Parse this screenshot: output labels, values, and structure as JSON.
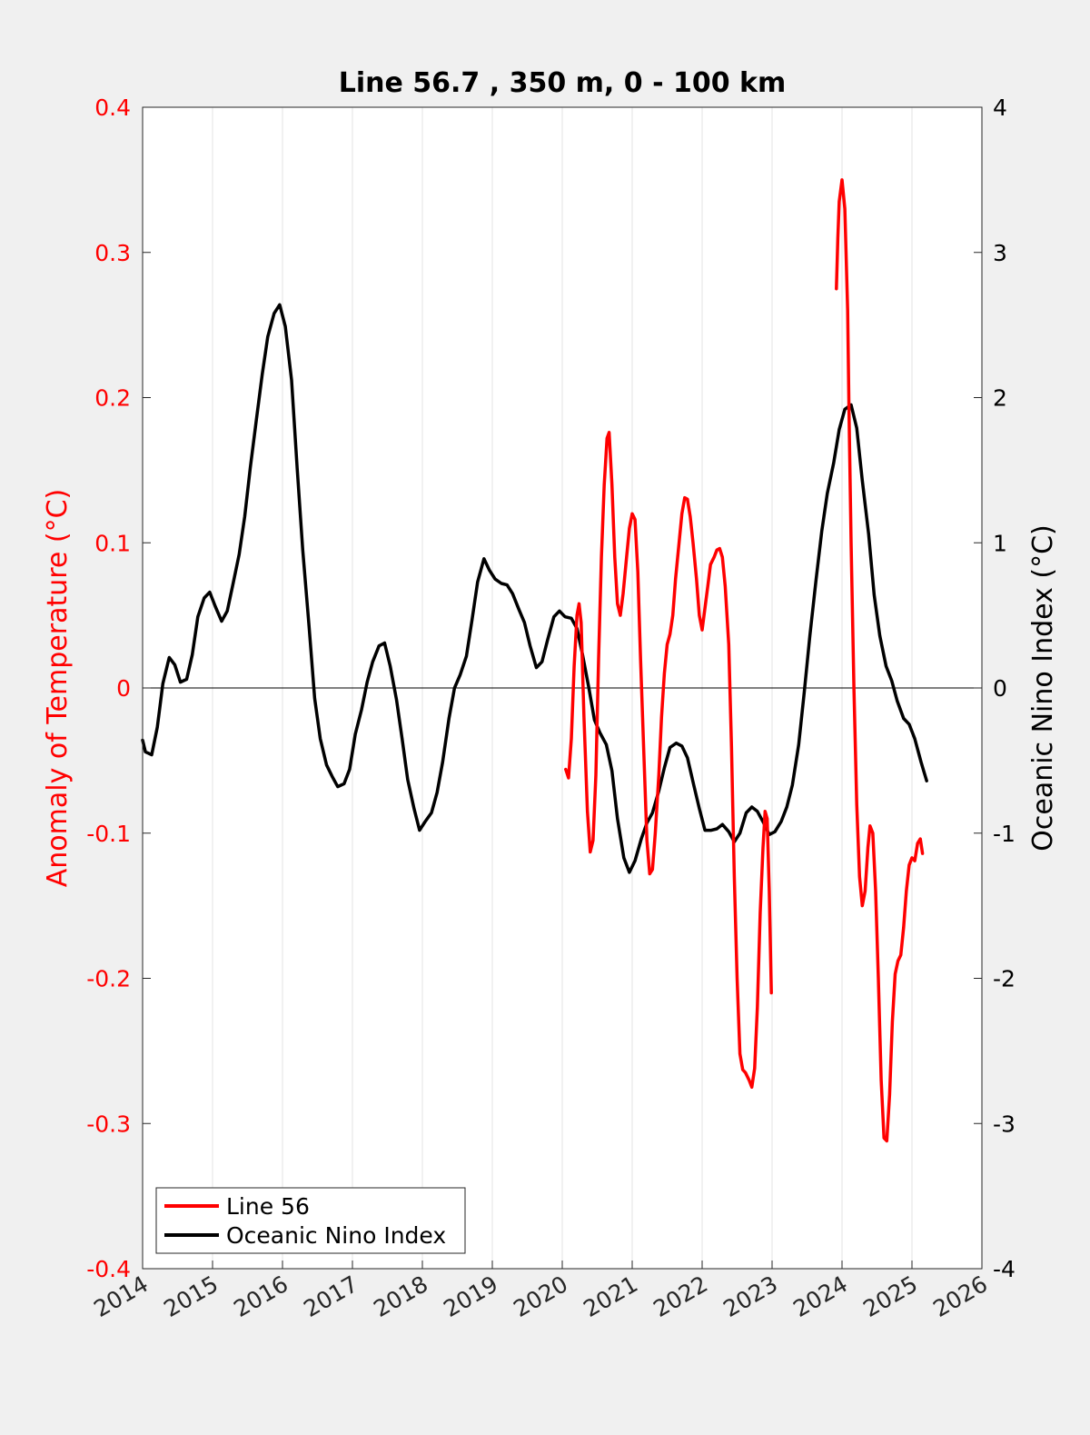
{
  "chart_data": {
    "type": "line",
    "title": "Line 56.7 , 350 m, 0 - 100 km",
    "xlabel": "",
    "ylabel_left": "Anomaly of Temperature (°C)",
    "ylabel_right": "Oceanic Nino Index (°C)",
    "xlim": [
      2014,
      2026
    ],
    "ylim_left": [
      -0.4,
      0.4
    ],
    "ylim_right": [
      -4,
      4
    ],
    "x_ticks": [
      "2014",
      "2015",
      "2016",
      "2017",
      "2018",
      "2019",
      "2020",
      "2021",
      "2022",
      "2023",
      "2024",
      "2025",
      "2026"
    ],
    "y_ticks_left": [
      "-0.4",
      "-0.3",
      "-0.2",
      "-0.1",
      "0",
      "0.1",
      "0.2",
      "0.3",
      "0.4"
    ],
    "y_ticks_right": [
      "-4",
      "-3",
      "-2",
      "-1",
      "0",
      "1",
      "2",
      "3",
      "4"
    ],
    "grid": "vertical",
    "legend_position": "bottom-left",
    "colors": {
      "line56": "#ff0000",
      "oni": "#000000",
      "left_axis": "#ff0000",
      "right_axis": "#000000"
    },
    "series": [
      {
        "name": "Line 56",
        "axis": "left",
        "segments": [
          [
            [
              2020.05,
              -0.056
            ],
            [
              2020.09,
              -0.062
            ],
            [
              2020.13,
              -0.035
            ],
            [
              2020.17,
              0.015
            ],
            [
              2020.21,
              0.05
            ],
            [
              2020.24,
              0.058
            ],
            [
              2020.27,
              0.045
            ],
            [
              2020.31,
              -0.02
            ],
            [
              2020.36,
              -0.085
            ],
            [
              2020.4,
              -0.113
            ],
            [
              2020.44,
              -0.105
            ],
            [
              2020.48,
              -0.06
            ],
            [
              2020.52,
              0.02
            ],
            [
              2020.56,
              0.09
            ],
            [
              2020.6,
              0.14
            ],
            [
              2020.64,
              0.172
            ],
            [
              2020.67,
              0.176
            ],
            [
              2020.71,
              0.14
            ],
            [
              2020.75,
              0.09
            ],
            [
              2020.79,
              0.058
            ],
            [
              2020.83,
              0.05
            ],
            [
              2020.87,
              0.065
            ],
            [
              2020.92,
              0.09
            ],
            [
              2020.96,
              0.11
            ],
            [
              2021.0,
              0.12
            ],
            [
              2021.04,
              0.116
            ],
            [
              2021.08,
              0.08
            ],
            [
              2021.12,
              0.02
            ],
            [
              2021.17,
              -0.05
            ],
            [
              2021.21,
              -0.105
            ],
            [
              2021.25,
              -0.128
            ],
            [
              2021.29,
              -0.125
            ],
            [
              2021.33,
              -0.1
            ],
            [
              2021.38,
              -0.06
            ],
            [
              2021.42,
              -0.02
            ],
            [
              2021.46,
              0.01
            ],
            [
              2021.5,
              0.03
            ],
            [
              2021.54,
              0.037
            ],
            [
              2021.58,
              0.05
            ],
            [
              2021.62,
              0.075
            ],
            [
              2021.67,
              0.1
            ],
            [
              2021.71,
              0.12
            ],
            [
              2021.75,
              0.131
            ],
            [
              2021.79,
              0.13
            ],
            [
              2021.83,
              0.118
            ],
            [
              2021.87,
              0.1
            ],
            [
              2021.92,
              0.075
            ],
            [
              2021.96,
              0.05
            ],
            [
              2022.0,
              0.04
            ],
            [
              2022.04,
              0.055
            ],
            [
              2022.08,
              0.07
            ],
            [
              2022.12,
              0.085
            ],
            [
              2022.17,
              0.09
            ],
            [
              2022.21,
              0.095
            ],
            [
              2022.25,
              0.096
            ],
            [
              2022.29,
              0.09
            ],
            [
              2022.33,
              0.07
            ],
            [
              2022.38,
              0.03
            ],
            [
              2022.42,
              -0.04
            ],
            [
              2022.46,
              -0.13
            ],
            [
              2022.5,
              -0.2
            ],
            [
              2022.54,
              -0.252
            ],
            [
              2022.58,
              -0.263
            ],
            [
              2022.62,
              -0.265
            ],
            [
              2022.67,
              -0.27
            ],
            [
              2022.71,
              -0.275
            ],
            [
              2022.75,
              -0.262
            ],
            [
              2022.79,
              -0.22
            ],
            [
              2022.83,
              -0.155
            ],
            [
              2022.87,
              -0.11
            ],
            [
              2022.9,
              -0.085
            ],
            [
              2022.93,
              -0.09
            ],
            [
              2022.96,
              -0.14
            ],
            [
              2022.99,
              -0.21
            ]
          ],
          [
            [
              2023.92,
              0.275
            ],
            [
              2023.94,
              0.31
            ],
            [
              2023.96,
              0.335
            ],
            [
              2024.0,
              0.35
            ],
            [
              2024.04,
              0.33
            ],
            [
              2024.08,
              0.26
            ],
            [
              2024.1,
              0.19
            ],
            [
              2024.13,
              0.1
            ],
            [
              2024.17,
              0.0
            ],
            [
              2024.21,
              -0.08
            ],
            [
              2024.25,
              -0.13
            ],
            [
              2024.29,
              -0.15
            ],
            [
              2024.33,
              -0.14
            ],
            [
              2024.37,
              -0.11
            ],
            [
              2024.4,
              -0.095
            ],
            [
              2024.44,
              -0.1
            ],
            [
              2024.48,
              -0.14
            ],
            [
              2024.52,
              -0.2
            ],
            [
              2024.56,
              -0.27
            ],
            [
              2024.6,
              -0.31
            ],
            [
              2024.64,
              -0.312
            ],
            [
              2024.68,
              -0.28
            ],
            [
              2024.72,
              -0.23
            ],
            [
              2024.76,
              -0.197
            ],
            [
              2024.8,
              -0.188
            ],
            [
              2024.84,
              -0.184
            ],
            [
              2024.88,
              -0.165
            ],
            [
              2024.92,
              -0.14
            ],
            [
              2024.96,
              -0.122
            ],
            [
              2025.0,
              -0.117
            ],
            [
              2025.04,
              -0.119
            ],
            [
              2025.08,
              -0.107
            ],
            [
              2025.12,
              -0.104
            ],
            [
              2025.15,
              -0.114
            ]
          ]
        ]
      },
      {
        "name": "Oceanic Nino Index",
        "axis": "right",
        "segments": [
          [
            [
              2014.0,
              -0.36
            ],
            [
              2014.04,
              -0.44
            ],
            [
              2014.13,
              -0.46
            ],
            [
              2014.21,
              -0.27
            ],
            [
              2014.29,
              0.03
            ],
            [
              2014.38,
              0.21
            ],
            [
              2014.46,
              0.16
            ],
            [
              2014.54,
              0.04
            ],
            [
              2014.63,
              0.06
            ],
            [
              2014.71,
              0.23
            ],
            [
              2014.79,
              0.49
            ],
            [
              2014.88,
              0.62
            ],
            [
              2014.96,
              0.66
            ],
            [
              2015.04,
              0.56
            ],
            [
              2015.13,
              0.46
            ],
            [
              2015.21,
              0.53
            ],
            [
              2015.29,
              0.71
            ],
            [
              2015.38,
              0.92
            ],
            [
              2015.46,
              1.18
            ],
            [
              2015.54,
              1.52
            ],
            [
              2015.63,
              1.86
            ],
            [
              2015.71,
              2.16
            ],
            [
              2015.79,
              2.42
            ],
            [
              2015.88,
              2.58
            ],
            [
              2015.96,
              2.64
            ],
            [
              2016.04,
              2.49
            ],
            [
              2016.13,
              2.12
            ],
            [
              2016.21,
              1.51
            ],
            [
              2016.29,
              0.95
            ],
            [
              2016.38,
              0.42
            ],
            [
              2016.46,
              -0.07
            ],
            [
              2016.54,
              -0.35
            ],
            [
              2016.63,
              -0.53
            ],
            [
              2016.71,
              -0.61
            ],
            [
              2016.79,
              -0.68
            ],
            [
              2016.88,
              -0.66
            ],
            [
              2016.96,
              -0.56
            ],
            [
              2017.04,
              -0.32
            ],
            [
              2017.13,
              -0.15
            ],
            [
              2017.21,
              0.04
            ],
            [
              2017.29,
              0.18
            ],
            [
              2017.38,
              0.29
            ],
            [
              2017.46,
              0.31
            ],
            [
              2017.54,
              0.15
            ],
            [
              2017.63,
              -0.08
            ],
            [
              2017.71,
              -0.35
            ],
            [
              2017.79,
              -0.63
            ],
            [
              2017.88,
              -0.83
            ],
            [
              2017.96,
              -0.98
            ],
            [
              2018.04,
              -0.92
            ],
            [
              2018.13,
              -0.86
            ],
            [
              2018.21,
              -0.72
            ],
            [
              2018.29,
              -0.51
            ],
            [
              2018.38,
              -0.21
            ],
            [
              2018.46,
              0.0
            ],
            [
              2018.54,
              0.09
            ],
            [
              2018.63,
              0.22
            ],
            [
              2018.71,
              0.47
            ],
            [
              2018.79,
              0.73
            ],
            [
              2018.88,
              0.89
            ],
            [
              2018.96,
              0.81
            ],
            [
              2019.04,
              0.75
            ],
            [
              2019.13,
              0.72
            ],
            [
              2019.21,
              0.71
            ],
            [
              2019.29,
              0.65
            ],
            [
              2019.38,
              0.54
            ],
            [
              2019.46,
              0.45
            ],
            [
              2019.54,
              0.29
            ],
            [
              2019.63,
              0.14
            ],
            [
              2019.71,
              0.18
            ],
            [
              2019.79,
              0.33
            ],
            [
              2019.88,
              0.49
            ],
            [
              2019.96,
              0.53
            ],
            [
              2020.04,
              0.49
            ],
            [
              2020.13,
              0.48
            ],
            [
              2020.21,
              0.41
            ],
            [
              2020.29,
              0.23
            ],
            [
              2020.38,
              0.0
            ],
            [
              2020.46,
              -0.22
            ],
            [
              2020.54,
              -0.31
            ],
            [
              2020.63,
              -0.39
            ],
            [
              2020.71,
              -0.57
            ],
            [
              2020.79,
              -0.9
            ],
            [
              2020.88,
              -1.17
            ],
            [
              2020.96,
              -1.27
            ],
            [
              2021.04,
              -1.19
            ],
            [
              2021.13,
              -1.04
            ],
            [
              2021.21,
              -0.93
            ],
            [
              2021.29,
              -0.86
            ],
            [
              2021.38,
              -0.71
            ],
            [
              2021.46,
              -0.55
            ],
            [
              2021.54,
              -0.41
            ],
            [
              2021.63,
              -0.38
            ],
            [
              2021.71,
              -0.4
            ],
            [
              2021.79,
              -0.48
            ],
            [
              2021.88,
              -0.67
            ],
            [
              2021.96,
              -0.83
            ],
            [
              2022.04,
              -0.98
            ],
            [
              2022.13,
              -0.98
            ],
            [
              2022.21,
              -0.97
            ],
            [
              2022.29,
              -0.94
            ],
            [
              2022.38,
              -0.99
            ],
            [
              2022.46,
              -1.06
            ],
            [
              2022.54,
              -1.0
            ],
            [
              2022.63,
              -0.86
            ],
            [
              2022.71,
              -0.82
            ],
            [
              2022.79,
              -0.85
            ],
            [
              2022.88,
              -0.93
            ],
            [
              2022.96,
              -1.01
            ],
            [
              2023.04,
              -0.99
            ],
            [
              2023.13,
              -0.92
            ],
            [
              2023.21,
              -0.82
            ],
            [
              2023.29,
              -0.67
            ],
            [
              2023.38,
              -0.39
            ],
            [
              2023.46,
              -0.03
            ],
            [
              2023.54,
              0.36
            ],
            [
              2023.63,
              0.75
            ],
            [
              2023.71,
              1.08
            ],
            [
              2023.79,
              1.34
            ],
            [
              2023.88,
              1.55
            ],
            [
              2023.96,
              1.78
            ],
            [
              2024.04,
              1.92
            ],
            [
              2024.13,
              1.95
            ],
            [
              2024.21,
              1.79
            ],
            [
              2024.29,
              1.43
            ],
            [
              2024.38,
              1.06
            ],
            [
              2024.46,
              0.64
            ],
            [
              2024.54,
              0.36
            ],
            [
              2024.63,
              0.15
            ],
            [
              2024.71,
              0.05
            ],
            [
              2024.79,
              -0.09
            ],
            [
              2024.88,
              -0.21
            ],
            [
              2024.96,
              -0.25
            ],
            [
              2025.04,
              -0.35
            ],
            [
              2025.13,
              -0.51
            ],
            [
              2025.21,
              -0.64
            ]
          ]
        ]
      }
    ]
  }
}
